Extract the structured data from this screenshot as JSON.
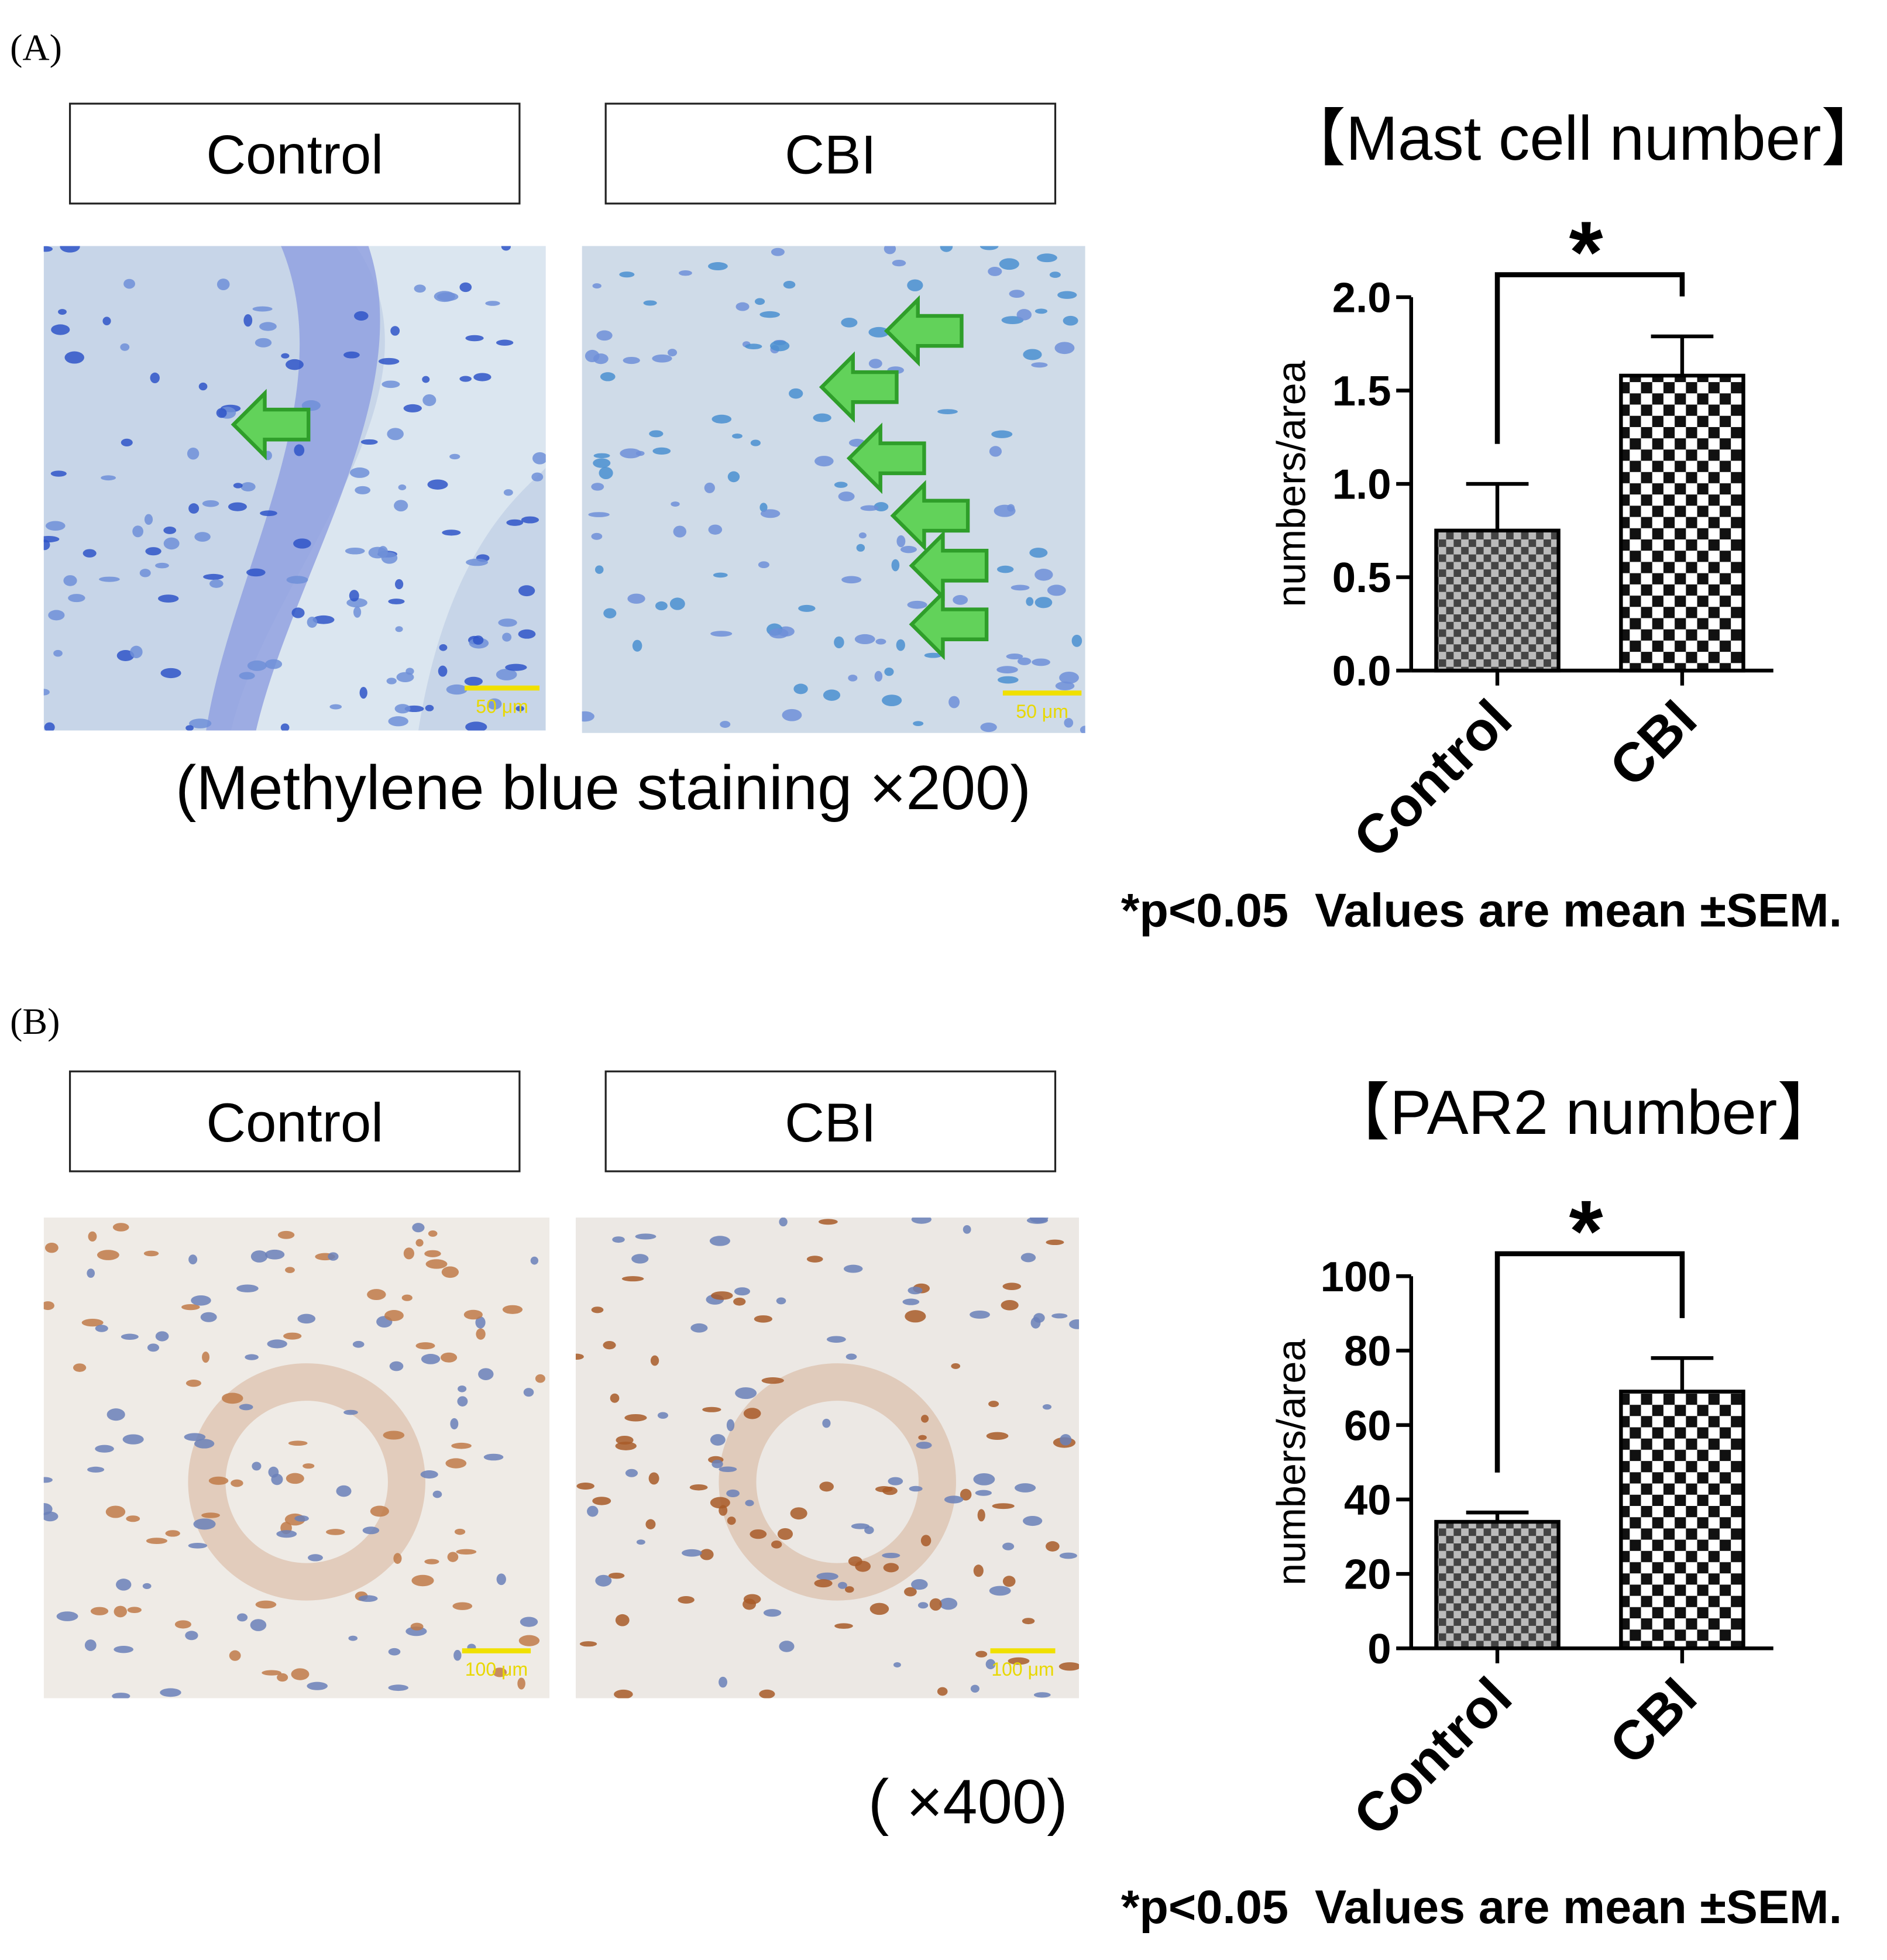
{
  "panels": [
    {
      "label": "(A)",
      "images": [
        "Control",
        "CBI"
      ],
      "scale_bars": [
        "50 μm",
        "50 μm"
      ],
      "caption": "(Methylene blue staining ×200)",
      "footnote": "*p<0.05  Values are mean ±SEM."
    },
    {
      "label": "(B)",
      "images": [
        "Control",
        "CBI"
      ],
      "scale_bars": [
        "100 μm",
        "100 μm"
      ],
      "caption": "( ×400)",
      "footnote": "*p<0.05  Values are mean ±SEM."
    }
  ],
  "chart_data": [
    {
      "type": "bar",
      "title": "【Mast cell number】",
      "y_label": "numbers/area",
      "categories": [
        "Control",
        "CBI"
      ],
      "values": [
        0.75,
        1.58
      ],
      "errors": [
        0.25,
        0.21
      ],
      "colors": [
        "#444444",
        "#111111"
      ],
      "annotation": "*",
      "ylim": [
        0,
        2
      ],
      "yticks": [
        {
          "value": 0,
          "label": "0.0"
        },
        {
          "value": 0.5,
          "label": "0.5"
        },
        {
          "value": 1,
          "label": "1.0"
        },
        {
          "value": 1.5,
          "label": "1.5"
        },
        {
          "value": 2,
          "label": "2.0"
        }
      ]
    },
    {
      "type": "bar",
      "title": "【PAR2 number】",
      "y_label": "numbers/area",
      "categories": [
        "Control",
        "CBI"
      ],
      "values": [
        34,
        69
      ],
      "errors": [
        2.5,
        9
      ],
      "colors": [
        "#444444",
        "#111111"
      ],
      "annotation": "*",
      "ylim": [
        0,
        100
      ],
      "yticks": [
        0,
        20,
        40,
        60,
        80,
        100
      ]
    }
  ]
}
